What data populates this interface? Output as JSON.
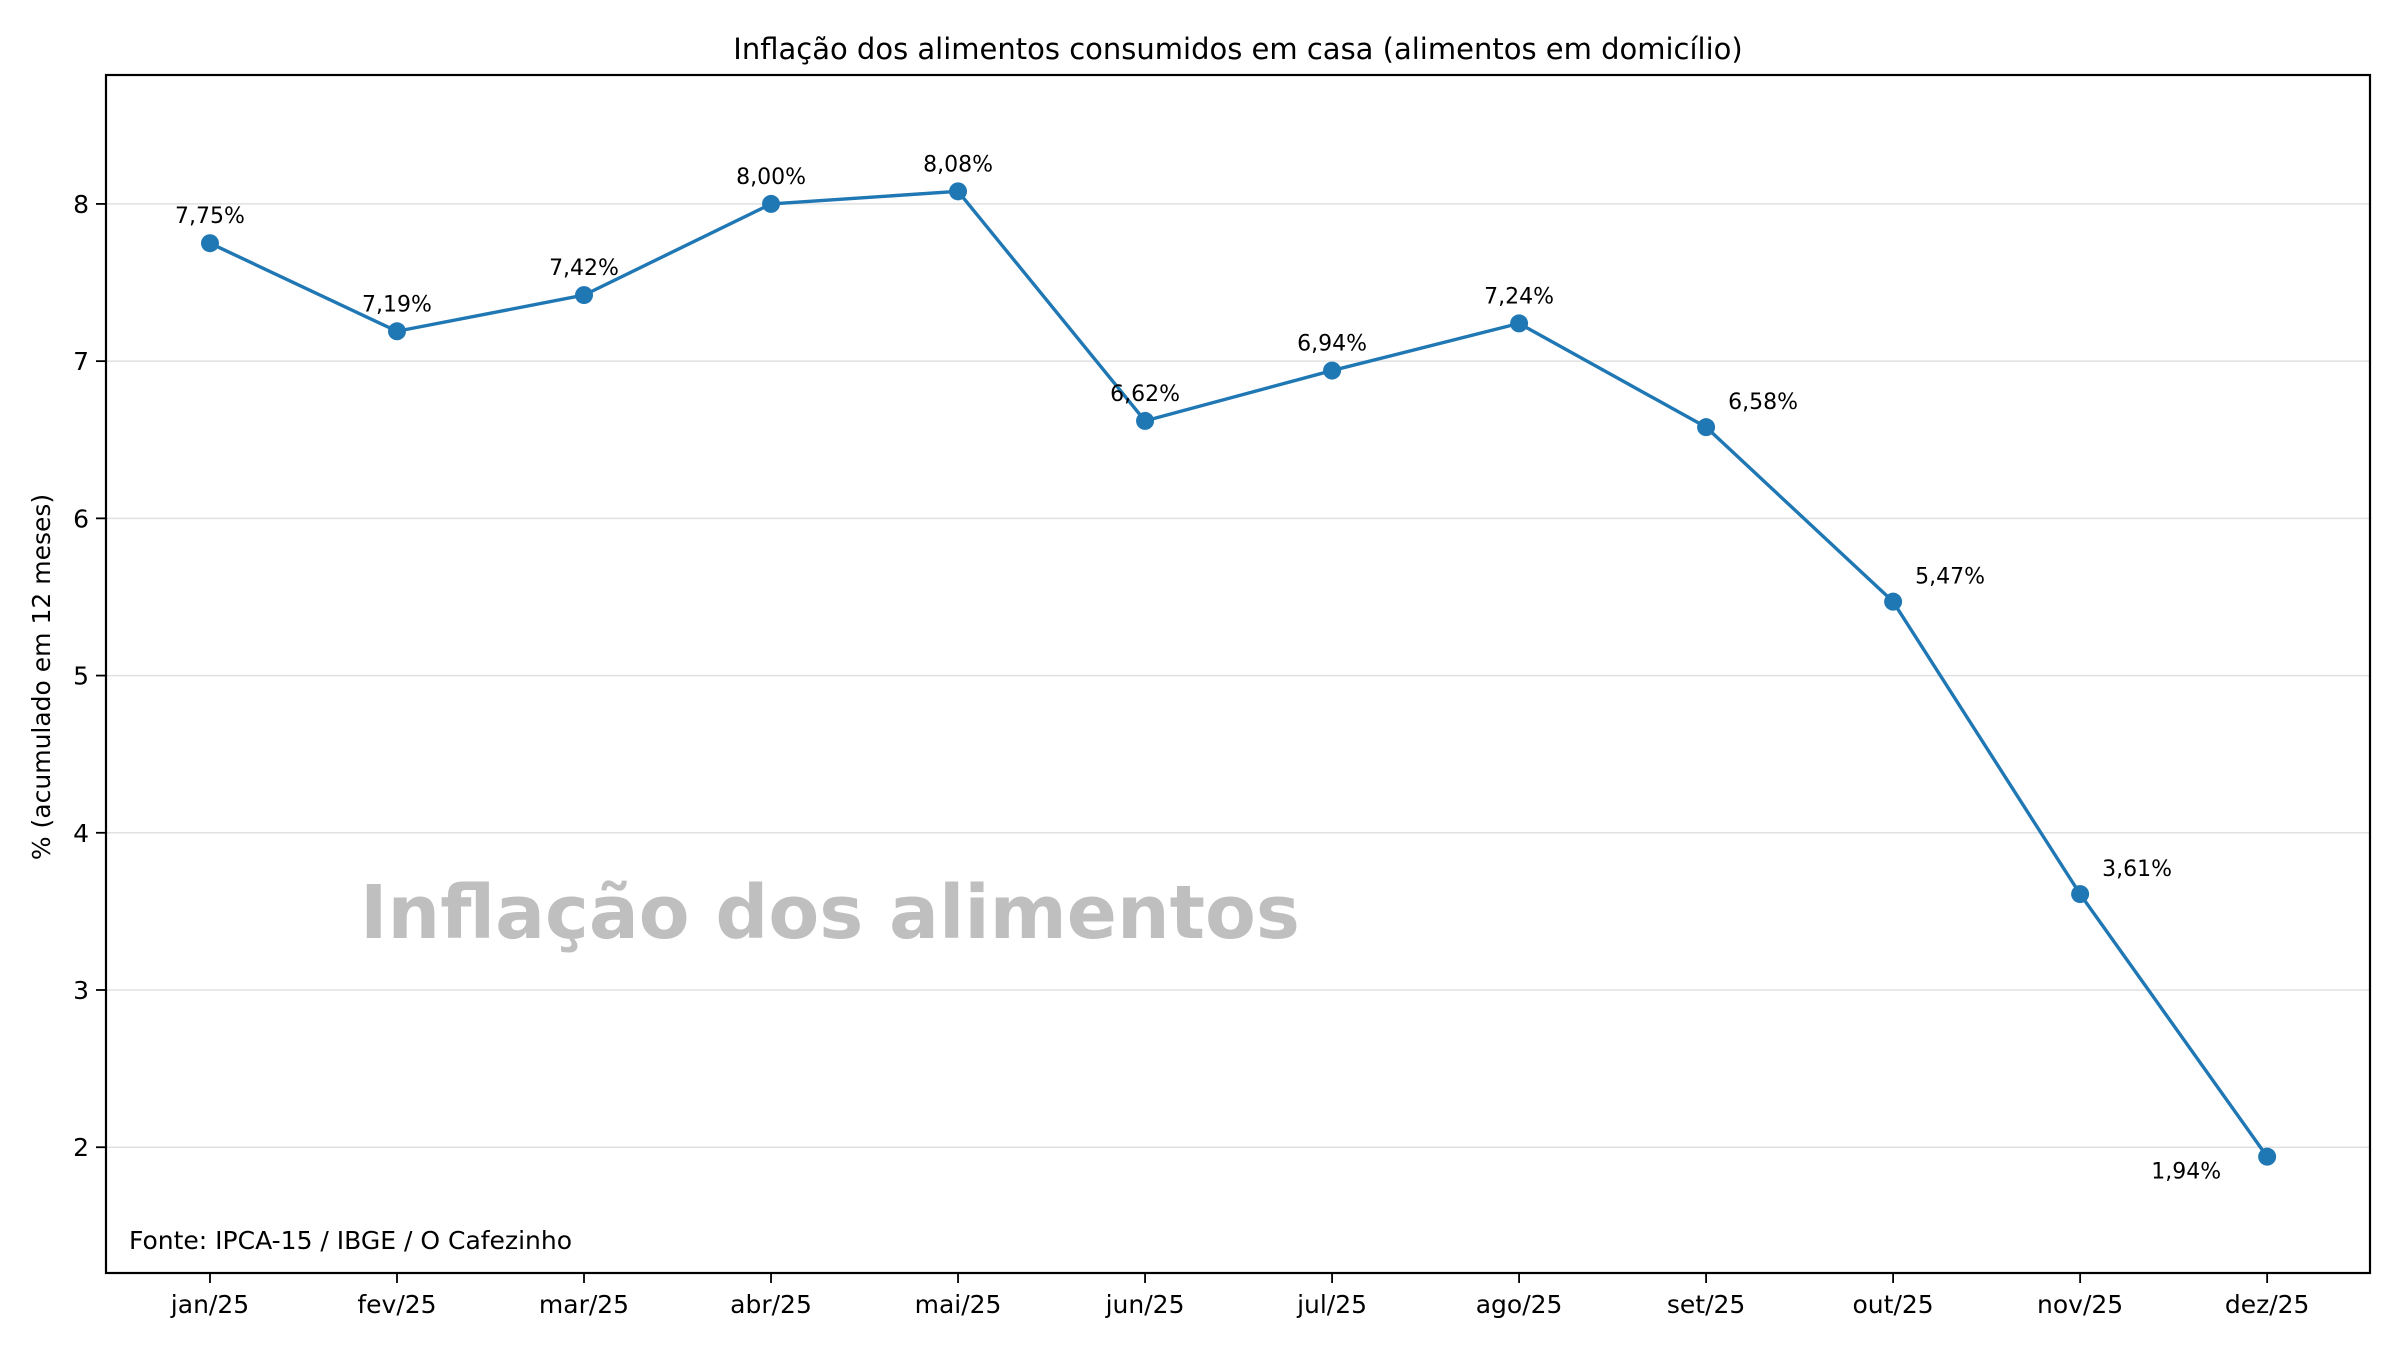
{
  "chart_data": {
    "type": "line",
    "title": "Inflação dos alimentos consumidos em casa (alimentos em domicílio)",
    "xlabel": "",
    "ylabel": "% (acumulado em 12 meses)",
    "categories": [
      "jan/25",
      "fev/25",
      "mar/25",
      "abr/25",
      "mai/25",
      "jun/25",
      "jul/25",
      "ago/25",
      "set/25",
      "out/25",
      "nov/25",
      "dez/25"
    ],
    "series": [
      {
        "name": "Alimentos em domicílio",
        "values": [
          7.75,
          7.19,
          7.42,
          8.0,
          8.08,
          6.62,
          6.94,
          7.24,
          6.58,
          5.47,
          3.61,
          1.94
        ],
        "labels": [
          "7,75%",
          "7,19%",
          "7,42%",
          "8,00%",
          "8,08%",
          "6,62%",
          "6,94%",
          "7,24%",
          "6,58%",
          "5,47%",
          "3,61%",
          "1,94%"
        ],
        "color": "#1f77b4"
      }
    ],
    "yticks": [
      2,
      3,
      4,
      5,
      6,
      7,
      8
    ],
    "ylim": [
      1.2,
      8.82
    ],
    "xlim": [
      -0.556,
      11.55
    ],
    "grid": "y",
    "legend": "none",
    "watermark": "Inflação dos alimentos",
    "source": "Fonte: IPCA-15 / IBGE / O Cafezinho"
  }
}
